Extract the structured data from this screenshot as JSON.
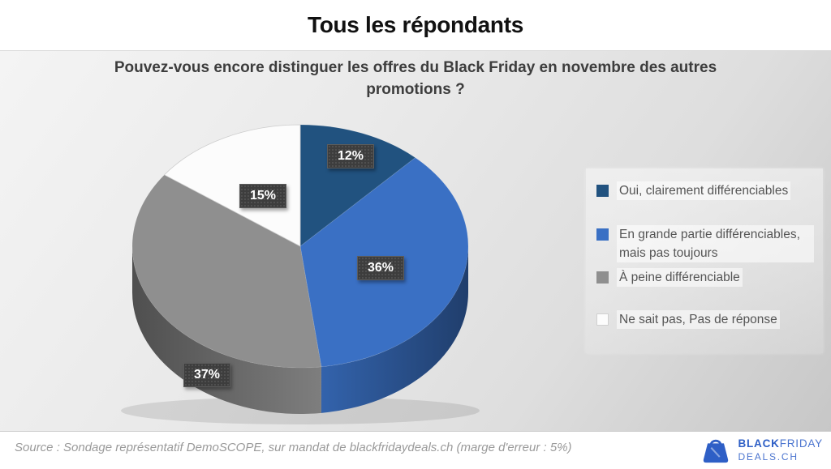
{
  "header": {
    "title": "Tous les répondants"
  },
  "chart_section": {
    "question": "Pouvez-vous encore distinguer les offres du Black Friday en novembre des autres promotions ?"
  },
  "chart_data": {
    "type": "pie",
    "style": "3d",
    "title": "Pouvez-vous encore distinguer les offres du Black Friday en novembre des autres promotions ?",
    "start_angle_deg": 0,
    "direction": "clockwise",
    "legend_position": "right",
    "unit": "%",
    "segments": [
      {
        "label": "Oui, clairement différenciables",
        "value": 12,
        "data_label": "12%",
        "color": "#21527F"
      },
      {
        "label": "En grande partie différenciables, mais pas toujours",
        "value": 36,
        "data_label": "36%",
        "color": "#3A70C4"
      },
      {
        "label": "À peine différenciable",
        "value": 37,
        "data_label": "37%",
        "color": "#8F8F8F"
      },
      {
        "label": "Ne sait pas, Pas de réponse",
        "value": 15,
        "data_label": "15%",
        "color": "#FCFCFC"
      }
    ]
  },
  "footer": {
    "source": "Source : Sondage représentatif DemoSCOPE, sur mandat de blackfridaydeals.ch (marge d'erreur : 5%)",
    "logo": {
      "icon": "shopping-bag-icon",
      "line1_bold": "BLACK",
      "line1_regular": "FRIDAY",
      "line2": "DEALS.CH",
      "color": "#2e5fc6"
    }
  }
}
